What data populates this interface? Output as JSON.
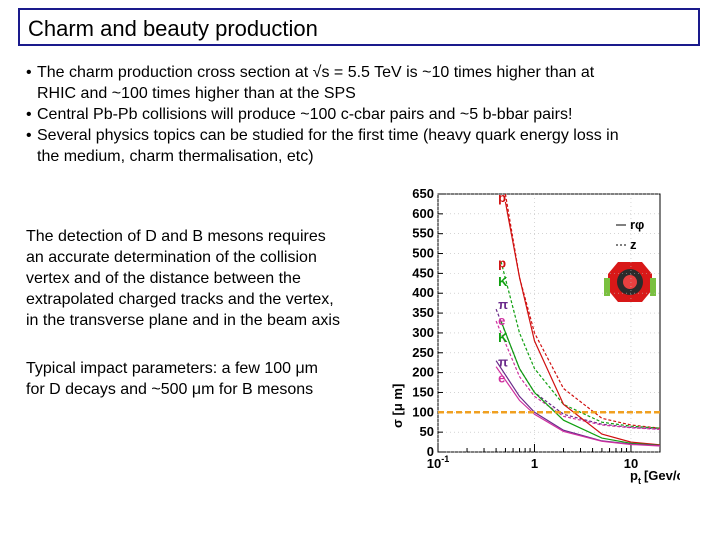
{
  "title": "Charm and beauty production",
  "bullets": [
    {
      "dot": "•",
      "lines": [
        "The charm production cross section at √s = 5.5 TeV is ~10 times higher than at",
        "RHIC and ~100 times higher than at the SPS"
      ]
    },
    {
      "dot": "•",
      "lines": [
        "Central Pb-Pb collisions will produce ~100 c-cbar pairs and ~5 b-bbar pairs!"
      ]
    },
    {
      "dot": "•",
      "lines": [
        "Several physics topics can be studied for the first time (heavy quark energy loss in",
        "the medium, charm thermalisation, etc)"
      ]
    }
  ],
  "paragraph1": [
    "The detection of D and B mesons requires",
    "an accurate determination of the collision",
    "vertex and of the distance between the",
    "extrapolated charged tracks and the vertex,",
    "in the transverse plane and in the beam axis"
  ],
  "paragraph2": [
    "Typical impact parameters: a few 100 μm",
    "for D decays and ~500 μm for B mesons"
  ],
  "chart_data": {
    "type": "line",
    "ylabel": "σ [μ m]",
    "xlabel": "p",
    "xlabel_sub": "t",
    "xlabel_unit": "[Gev/c]",
    "y_ticks": [
      0,
      50,
      100,
      150,
      200,
      250,
      300,
      350,
      400,
      450,
      500,
      550,
      600,
      650
    ],
    "x_tick_labels": [
      {
        "x": 0.1,
        "base": "10",
        "exp": "-1"
      },
      {
        "x": 1,
        "base": "1",
        "exp": ""
      },
      {
        "x": 10,
        "base": "10",
        "exp": ""
      }
    ],
    "ylim": [
      0,
      650
    ],
    "xlim": [
      0.1,
      20
    ],
    "xscale": "log",
    "reference_line": {
      "y": 100,
      "color": "#f0a020"
    },
    "legend": [
      {
        "label": "rφ",
        "style": "solid"
      },
      {
        "label": "z",
        "style": "dashed"
      }
    ],
    "labels": [
      {
        "text": "p",
        "color": "#d01010",
        "x": 0.42,
        "y": 630
      },
      {
        "text": "p",
        "color": "#d01010",
        "x": 0.42,
        "y": 465
      },
      {
        "text": "K",
        "color": "#10a010",
        "x": 0.42,
        "y": 418
      },
      {
        "text": "π",
        "color": "#6a2a8a",
        "x": 0.42,
        "y": 360
      },
      {
        "text": "e",
        "color": "#d030a0",
        "x": 0.42,
        "y": 320
      },
      {
        "text": "K",
        "color": "#10a010",
        "x": 0.42,
        "y": 277
      },
      {
        "text": "π",
        "color": "#6a2a8a",
        "x": 0.42,
        "y": 215
      },
      {
        "text": "e",
        "color": "#d030a0",
        "x": 0.42,
        "y": 175
      }
    ],
    "series": [
      {
        "color": "#d01010",
        "style": "dashed",
        "x": [
          0.5,
          0.7,
          1,
          2,
          5,
          10,
          20
        ],
        "y": [
          650,
          440,
          300,
          160,
          85,
          68,
          60
        ]
      },
      {
        "color": "#10a010",
        "style": "dashed",
        "x": [
          0.45,
          0.7,
          1,
          2,
          5,
          10,
          20
        ],
        "y": [
          480,
          300,
          210,
          120,
          75,
          65,
          60
        ]
      },
      {
        "color": "#6a2a8a",
        "style": "dashed",
        "x": [
          0.4,
          0.7,
          1,
          2,
          5,
          10,
          20
        ],
        "y": [
          360,
          210,
          150,
          95,
          70,
          62,
          58
        ]
      },
      {
        "color": "#d030a0",
        "style": "dashed",
        "x": [
          0.4,
          0.7,
          1,
          2,
          5,
          10,
          20
        ],
        "y": [
          330,
          190,
          140,
          90,
          68,
          61,
          57
        ]
      },
      {
        "color": "#d01010",
        "style": "solid",
        "x": [
          0.5,
          0.7,
          1,
          2,
          5,
          10,
          20
        ],
        "y": [
          630,
          440,
          280,
          120,
          45,
          25,
          18
        ]
      },
      {
        "color": "#10a010",
        "style": "solid",
        "x": [
          0.45,
          0.7,
          1,
          2,
          5,
          10,
          20
        ],
        "y": [
          330,
          210,
          150,
          80,
          35,
          22,
          17
        ]
      },
      {
        "color": "#6a2a8a",
        "style": "solid",
        "x": [
          0.4,
          0.7,
          1,
          2,
          5,
          10,
          20
        ],
        "y": [
          230,
          140,
          100,
          55,
          28,
          20,
          16
        ]
      },
      {
        "color": "#d030a0",
        "style": "solid",
        "x": [
          0.4,
          0.7,
          1,
          2,
          5,
          10,
          20
        ],
        "y": [
          215,
          130,
          95,
          52,
          27,
          19,
          15
        ]
      }
    ]
  }
}
